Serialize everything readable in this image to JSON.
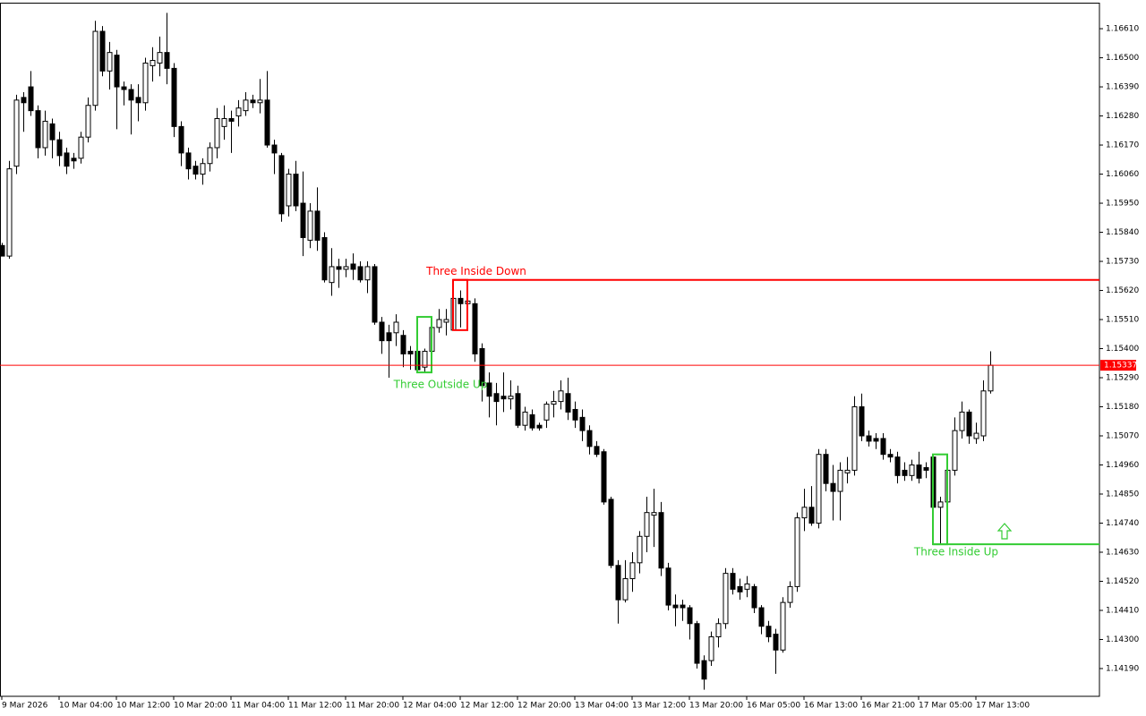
{
  "chart_data": {
    "type": "candlestick",
    "categories": [
      "9 Mar 2026",
      null,
      null,
      null,
      null,
      null,
      null,
      null,
      "10 Mar 04:00",
      null,
      null,
      null,
      null,
      null,
      null,
      null,
      "10 Mar 12:00",
      null,
      null,
      null,
      null,
      null,
      null,
      null,
      "10 Mar 20:00",
      null,
      null,
      null,
      null,
      null,
      null,
      null,
      "11 Mar 04:00",
      null,
      null,
      null,
      null,
      null,
      null,
      null,
      "11 Mar 12:00",
      null,
      null,
      null,
      null,
      null,
      null,
      null,
      "11 Mar 20:00",
      null,
      null,
      null,
      null,
      null,
      null,
      null,
      "12 Mar 04:00",
      null,
      null,
      null,
      null,
      null,
      null,
      null,
      "12 Mar 12:00",
      null,
      null,
      null,
      null,
      null,
      null,
      null,
      "12 Mar 20:00",
      null,
      null,
      null,
      null,
      null,
      null,
      null,
      "13 Mar 04:00",
      null,
      null,
      null,
      null,
      null,
      null,
      null,
      "13 Mar 12:00",
      null,
      null,
      null,
      null,
      null,
      null,
      null,
      "13 Mar 20:00",
      null,
      null,
      null,
      null,
      null,
      null,
      null,
      "16 Mar 05:00",
      null,
      null,
      null,
      null,
      null,
      null,
      null,
      "16 Mar 13:00",
      null,
      null,
      null,
      null,
      null,
      null,
      null,
      "16 Mar 21:00",
      null,
      null,
      null,
      null,
      null,
      null,
      null,
      "17 Mar 05:00",
      null,
      null,
      null,
      null,
      null,
      null,
      null,
      "17 Mar 13:00",
      null,
      null
    ],
    "open": [
      1.1579,
      1.1575,
      1.1609,
      1.1635,
      1.1639,
      1.163,
      1.1616,
      1.1625,
      1.1619,
      1.1614,
      1.1612,
      1.1612,
      1.162,
      1.1632,
      1.166,
      1.1645,
      1.1651,
      1.1639,
      1.1638,
      1.1635,
      1.1633,
      1.1647,
      1.1648,
      1.1652,
      1.1646,
      1.1624,
      1.1614,
      1.1609,
      1.1606,
      1.161,
      1.1616,
      1.1624,
      1.1627,
      1.1628,
      1.163,
      1.1634,
      1.1633,
      1.1634,
      1.1617,
      1.1613,
      1.1594,
      1.1606,
      1.1595,
      1.1581,
      1.1592,
      1.1582,
      1.1565,
      1.1571,
      1.157,
      1.1572,
      1.1571,
      1.1566,
      1.1571,
      1.155,
      1.1546,
      1.1546,
      1.1545,
      1.1539,
      1.1539,
      1.1533,
      1.1539,
      1.1548,
      1.155,
      1.1547,
      1.1559,
      1.1557,
      1.1557,
      1.154,
      1.1527,
      1.1523,
      1.1522,
      1.1521,
      1.1523,
      1.1511,
      1.1515,
      1.1511,
      1.1513,
      1.1519,
      1.152,
      1.1523,
      1.1517,
      1.1514,
      1.1509,
      1.1503,
      1.1501,
      1.1483,
      1.1458,
      1.1445,
      1.1453,
      1.1459,
      1.1469,
      1.1477,
      1.1478,
      1.1457,
      1.1443,
      1.1443,
      1.1442,
      1.1436,
      1.1422,
      1.1422,
      1.1431,
      1.1436,
      1.1455,
      1.145,
      1.1449,
      1.145,
      1.1442,
      1.1435,
      1.1432,
      1.1426,
      1.1444,
      1.145,
      1.1476,
      1.148,
      1.1474,
      1.15,
      1.1489,
      1.1486,
      1.1493,
      1.1494,
      1.1518,
      1.1507,
      1.1506,
      1.1506,
      1.15,
      1.1499,
      1.1494,
      1.1492,
      1.1496,
      1.1495,
      1.1499,
      1.148,
      1.1482,
      1.1494,
      1.1509,
      1.1516,
      1.1506,
      1.1507,
      1.1524
    ],
    "high": [
      1.158,
      1.1611,
      1.1636,
      1.1637,
      1.1645,
      1.1632,
      1.163,
      1.1627,
      1.1622,
      1.1616,
      1.1614,
      1.1622,
      1.1635,
      1.1664,
      1.1662,
      1.1656,
      1.1653,
      1.1641,
      1.164,
      1.164,
      1.165,
      1.1654,
      1.1658,
      1.1667,
      1.1648,
      1.1626,
      1.1616,
      1.1611,
      1.1612,
      1.1618,
      1.1631,
      1.1632,
      1.163,
      1.1634,
      1.1637,
      1.1636,
      1.1642,
      1.1645,
      1.1619,
      1.1614,
      1.1608,
      1.1611,
      1.1607,
      1.1595,
      1.1601,
      1.1584,
      1.1578,
      1.1574,
      1.1574,
      1.1576,
      1.1573,
      1.1573,
      1.1572,
      1.1552,
      1.1549,
      1.1553,
      1.1547,
      1.1541,
      1.1541,
      1.154,
      1.1552,
      1.1555,
      1.1555,
      1.1562,
      1.1562,
      1.1566,
      1.1559,
      1.1542,
      1.1531,
      1.1527,
      1.1531,
      1.1528,
      1.1526,
      1.1518,
      1.1517,
      1.1512,
      1.152,
      1.1524,
      1.1528,
      1.1529,
      1.152,
      1.1517,
      1.1511,
      1.1505,
      1.1502,
      1.1484,
      1.146,
      1.146,
      1.1463,
      1.1471,
      1.1484,
      1.1487,
      1.1482,
      1.1459,
      1.1447,
      1.1445,
      1.1443,
      1.1437,
      1.1424,
      1.1433,
      1.1438,
      1.1457,
      1.1457,
      1.1453,
      1.1454,
      1.1451,
      1.1443,
      1.1437,
      1.1434,
      1.1446,
      1.1452,
      1.1478,
      1.1487,
      1.1488,
      1.1502,
      1.1502,
      1.1496,
      1.1497,
      1.1499,
      1.1522,
      1.1523,
      1.1509,
      1.1508,
      1.1508,
      1.1502,
      1.1501,
      1.1497,
      1.1498,
      1.1501,
      1.1497,
      1.15,
      1.1484,
      1.1496,
      1.1514,
      1.152,
      1.1517,
      1.1512,
      1.1528,
      1.1539
    ],
    "low": [
      1.1575,
      1.1574,
      1.1606,
      1.1622,
      1.1628,
      1.1612,
      1.1613,
      1.1612,
      1.1609,
      1.1606,
      1.1608,
      1.161,
      1.1618,
      1.163,
      1.1643,
      1.1638,
      1.1623,
      1.1632,
      1.1621,
      1.1626,
      1.163,
      1.1641,
      1.1643,
      1.164,
      1.162,
      1.1609,
      1.1604,
      1.1604,
      1.1602,
      1.1607,
      1.1612,
      1.1619,
      1.1614,
      1.1624,
      1.1628,
      1.1631,
      1.1629,
      1.1616,
      1.1606,
      1.1588,
      1.159,
      1.1592,
      1.1575,
      1.1578,
      1.1577,
      1.1565,
      1.156,
      1.1563,
      1.1567,
      1.1566,
      1.1565,
      1.1561,
      1.1549,
      1.1538,
      1.1529,
      1.1541,
      1.1533,
      1.1532,
      1.1531,
      1.1531,
      1.1535,
      1.1546,
      1.1545,
      1.1547,
      1.1548,
      1.1555,
      1.1535,
      1.152,
      1.1514,
      1.1511,
      1.1516,
      1.1517,
      1.151,
      1.1509,
      1.1509,
      1.1509,
      1.151,
      1.1514,
      1.1517,
      1.1513,
      1.151,
      1.1505,
      1.15,
      1.1499,
      1.1481,
      1.1457,
      1.1436,
      1.1444,
      1.1448,
      1.1455,
      1.1463,
      1.1465,
      1.1454,
      1.1441,
      1.1435,
      1.1437,
      1.143,
      1.1419,
      1.1411,
      1.142,
      1.1427,
      1.1434,
      1.1447,
      1.1445,
      1.1446,
      1.144,
      1.1432,
      1.1429,
      1.1417,
      1.1425,
      1.1442,
      1.1448,
      1.1471,
      1.1473,
      1.1472,
      1.1486,
      1.1475,
      1.1475,
      1.1489,
      1.1492,
      1.1505,
      1.1503,
      1.1502,
      1.1498,
      1.1497,
      1.1489,
      1.149,
      1.149,
      1.1489,
      1.1491,
      1.1478,
      1.1466,
      1.148,
      1.1492,
      1.1506,
      1.1504,
      1.1504,
      1.1505,
      1.1523
    ],
    "close": [
      1.1575,
      1.1608,
      1.1634,
      1.1633,
      1.163,
      1.1616,
      1.1626,
      1.1619,
      1.1613,
      1.1609,
      1.1611,
      1.162,
      1.1632,
      1.166,
      1.1645,
      1.1652,
      1.1639,
      1.1638,
      1.1634,
      1.1633,
      1.1648,
      1.1649,
      1.1652,
      1.1646,
      1.1624,
      1.1614,
      1.1608,
      1.1606,
      1.161,
      1.1616,
      1.1627,
      1.1627,
      1.1626,
      1.1631,
      1.1634,
      1.1633,
      1.1634,
      1.1617,
      1.1614,
      1.1591,
      1.1606,
      1.1594,
      1.1582,
      1.1592,
      1.1581,
      1.1566,
      1.1571,
      1.157,
      1.1571,
      1.157,
      1.1566,
      1.1571,
      1.155,
      1.1543,
      1.1543,
      1.155,
      1.1538,
      1.1538,
      1.1532,
      1.1539,
      1.1548,
      1.1551,
      1.1551,
      1.1559,
      1.1557,
      1.1558,
      1.1538,
      1.1526,
      1.1522,
      1.152,
      1.1521,
      1.1522,
      1.1511,
      1.1516,
      1.151,
      1.151,
      1.1519,
      1.152,
      1.1524,
      1.1516,
      1.1513,
      1.1509,
      1.1503,
      1.15,
      1.1482,
      1.1458,
      1.1445,
      1.1453,
      1.1459,
      1.1469,
      1.1478,
      1.1478,
      1.1457,
      1.1443,
      1.1442,
      1.1442,
      1.1436,
      1.1421,
      1.1415,
      1.1431,
      1.1436,
      1.1455,
      1.1449,
      1.1448,
      1.1451,
      1.1442,
      1.1435,
      1.1431,
      1.1426,
      1.1444,
      1.145,
      1.1476,
      1.148,
      1.1474,
      1.15,
      1.1489,
      1.1486,
      1.1494,
      1.1494,
      1.1518,
      1.1507,
      1.1505,
      1.1505,
      1.15,
      1.1499,
      1.1492,
      1.1492,
      1.1496,
      1.1491,
      1.1494,
      1.148,
      1.1482,
      1.1494,
      1.1509,
      1.1516,
      1.1507,
      1.1508,
      1.1524,
      1.15337
    ],
    "up_color": "#ffffff",
    "down_color": "#000000",
    "outline_color": "#000000",
    "price_line_color": "#ff0000",
    "ylim": [
      1.14085,
      1.16705
    ],
    "yticks": [
      {
        "value": 1.1661,
        "label": "1.16610"
      },
      {
        "value": 1.165,
        "label": "1.16500"
      },
      {
        "value": 1.1639,
        "label": "1.16390"
      },
      {
        "value": 1.1628,
        "label": "1.16280"
      },
      {
        "value": 1.1617,
        "label": "1.16170"
      },
      {
        "value": 1.1606,
        "label": "1.16060"
      },
      {
        "value": 1.1595,
        "label": "1.15950"
      },
      {
        "value": 1.1584,
        "label": "1.15840"
      },
      {
        "value": 1.1573,
        "label": "1.15730"
      },
      {
        "value": 1.1562,
        "label": "1.15620"
      },
      {
        "value": 1.1551,
        "label": "1.15510"
      },
      {
        "value": 1.154,
        "label": "1.15400"
      },
      {
        "value": 1.1529,
        "label": "1.15290"
      },
      {
        "value": 1.1518,
        "label": "1.15180"
      },
      {
        "value": 1.1507,
        "label": "1.15070"
      },
      {
        "value": 1.1496,
        "label": "1.14960"
      },
      {
        "value": 1.1485,
        "label": "1.14850"
      },
      {
        "value": 1.1474,
        "label": "1.14740"
      },
      {
        "value": 1.1463,
        "label": "1.14630"
      },
      {
        "value": 1.1452,
        "label": "1.14520"
      },
      {
        "value": 1.1441,
        "label": "1.14410"
      },
      {
        "value": 1.143,
        "label": "1.14300"
      },
      {
        "value": 1.1419,
        "label": "1.14190"
      }
    ],
    "patterns": [
      {
        "label": "Three Inside Down",
        "color": "#ff0000"
      },
      {
        "label": "Three Outside Up",
        "color": "#33cc33"
      },
      {
        "label": "Three Inside Up",
        "color": "#33cc33"
      }
    ]
  }
}
